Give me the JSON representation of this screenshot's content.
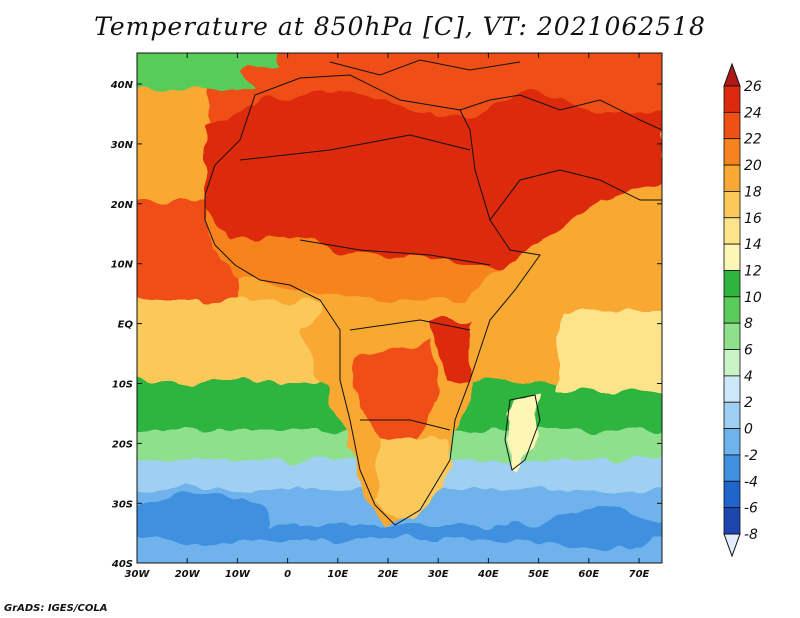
{
  "title": "Temperature at 850hPa [C], VT: 2021062518",
  "credit": "GrADS: IGES/COLA",
  "map": {
    "lat_ticks": [
      "40N",
      "30N",
      "20N",
      "10N",
      "EQ",
      "10S",
      "20S",
      "30S",
      "40S"
    ],
    "lon_ticks": [
      "30W",
      "20W",
      "10W",
      "0",
      "10E",
      "20E",
      "30E",
      "40E",
      "50E",
      "60E",
      "70E"
    ]
  },
  "colorbar": {
    "labels": [
      "26",
      "24",
      "22",
      "20",
      "18",
      "16",
      "14",
      "12",
      "10",
      "8",
      "6",
      "4",
      "2",
      "0",
      "-2",
      "-4",
      "-6",
      "-8"
    ],
    "colors": [
      "#b01818",
      "#dd2a0f",
      "#ef5014",
      "#f6831c",
      "#f9a833",
      "#fbc85a",
      "#fde38a",
      "#fdf6b4",
      "#2fb53f",
      "#59cc59",
      "#8ee08c",
      "#c9f2c5",
      "#cde8f8",
      "#9fd0f2",
      "#6fb3ec",
      "#3f90e0",
      "#1f65cc",
      "#1d45b0",
      "#16288a"
    ]
  }
}
